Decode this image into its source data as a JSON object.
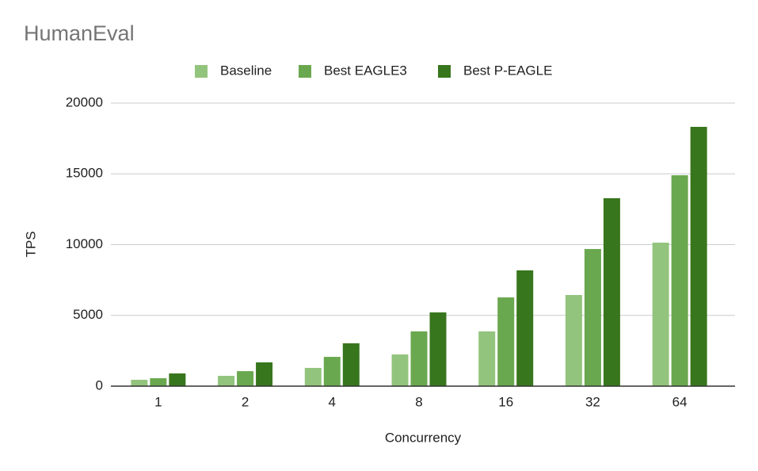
{
  "chart_data": {
    "type": "bar",
    "title": "HumanEval",
    "x_label": "Concurrency",
    "y_label": "TPS",
    "categories": [
      "1",
      "2",
      "4",
      "8",
      "16",
      "32",
      "64"
    ],
    "series": [
      {
        "name": "Baseline",
        "color": "#93c47d",
        "values": [
          450,
          730,
          1290,
          2240,
          3870,
          6440,
          10140
        ]
      },
      {
        "name": "Best EAGLE3",
        "color": "#6aa84f",
        "values": [
          560,
          1060,
          2070,
          3870,
          6270,
          9690,
          14900
        ]
      },
      {
        "name": "Best P-EAGLE",
        "color": "#38761d",
        "values": [
          900,
          1680,
          3030,
          5210,
          8180,
          13280,
          18320
        ]
      }
    ],
    "ylim": [
      0,
      20000
    ],
    "yticks": [
      0,
      5000,
      10000,
      15000,
      20000
    ],
    "grid": true,
    "legend": "top"
  }
}
